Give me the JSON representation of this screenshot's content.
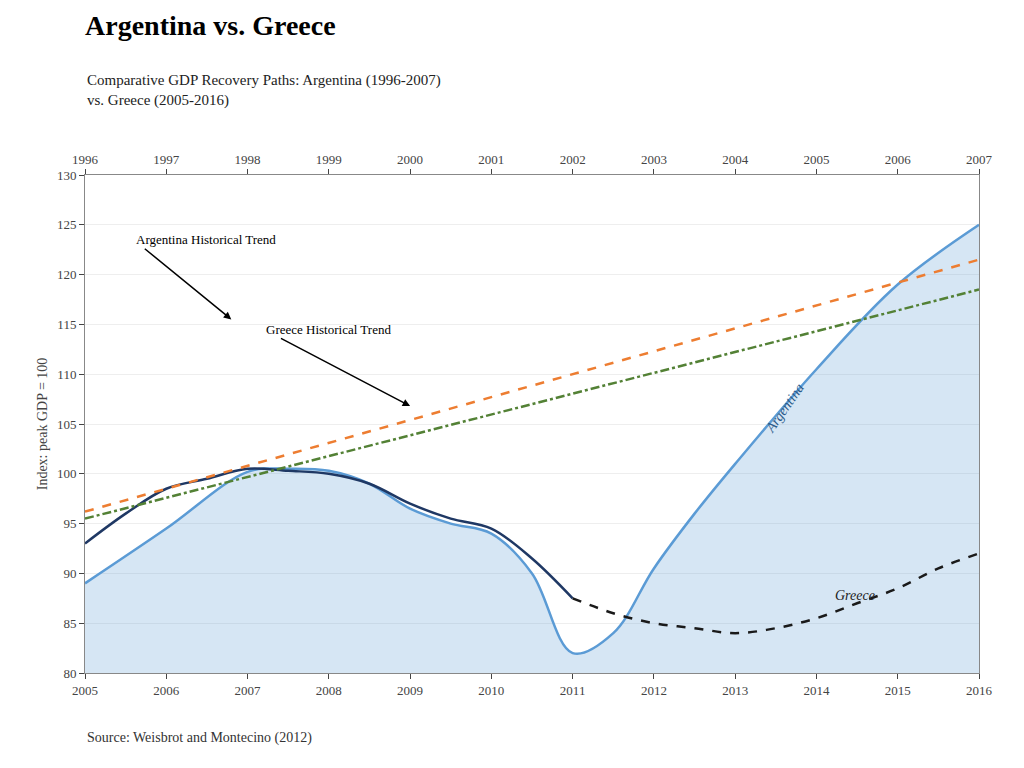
{
  "chart_data": {
    "type": "line",
    "title": "Argentina vs. Greece",
    "subtitle": "Comparative GDP Recovery Paths: Argentina (1996-2007)\nvs. Greece (2005-2016)",
    "source": "Source: Weisbrot and Montecino (2012)",
    "ylabel": "Index: peak GDP = 100",
    "xlim": [
      2005,
      2016
    ],
    "xticks": [
      2005,
      2006,
      2007,
      2008,
      2009,
      2010,
      2011,
      2012,
      2013,
      2014,
      2015,
      2016
    ],
    "x2lim": [
      2005,
      2016
    ],
    "x2ticks": [
      {
        "value": 2005,
        "label": "1996"
      },
      {
        "value": 2006,
        "label": "1997"
      },
      {
        "value": 2007,
        "label": "1998"
      },
      {
        "value": 2008,
        "label": "1999"
      },
      {
        "value": 2009,
        "label": "2000"
      },
      {
        "value": 2010,
        "label": "2001"
      },
      {
        "value": 2011,
        "label": "2002"
      },
      {
        "value": 2012,
        "label": "2003"
      },
      {
        "value": 2013,
        "label": "2004"
      },
      {
        "value": 2014,
        "label": "2005"
      },
      {
        "value": 2015,
        "label": "2006"
      },
      {
        "value": 2016,
        "label": "2007"
      }
    ],
    "ylim": [
      80,
      130
    ],
    "yticks": [
      80,
      85,
      90,
      95,
      100,
      105,
      110,
      115,
      120,
      125,
      130
    ],
    "grid": "y",
    "series": [
      {
        "type": "area",
        "color": "#5b9bd5",
        "line_style": "solid",
        "x": [
          2005,
          2006,
          2007,
          2007.5,
          2008,
          2008.5,
          2009,
          2009.5,
          2010,
          2010.5,
          2011,
          2011.5,
          2012,
          2012.5,
          2013,
          2014,
          2015,
          2016
        ],
        "values": [
          89.0,
          94.5,
          100.2,
          100.5,
          100.3,
          99.0,
          96.5,
          95.0,
          94.0,
          90.0,
          82.0,
          84.0,
          90.5,
          96.0,
          101.0,
          110.5,
          119.0,
          125.0
        ]
      },
      {
        "type": "line",
        "color": "#1f3864",
        "line_style": "solid",
        "x": [
          2005,
          2005.5,
          2006,
          2006.5,
          2007,
          2007.5,
          2008,
          2008.5,
          2009,
          2009.5,
          2010,
          2010.5,
          2011
        ],
        "values": [
          93.0,
          96.0,
          98.5,
          99.5,
          100.5,
          100.3,
          100.0,
          99.0,
          97.0,
          95.5,
          94.5,
          91.5,
          87.5
        ]
      },
      {
        "type": "line",
        "color": "#1a1a1a",
        "line_style": "dashed",
        "x": [
          2011,
          2011.5,
          2012,
          2012.5,
          2013,
          2013.5,
          2014,
          2014.5,
          2015,
          2015.5,
          2016
        ],
        "values": [
          87.5,
          86.0,
          85.0,
          84.5,
          84.0,
          84.5,
          85.5,
          87.0,
          88.5,
          90.5,
          92.0
        ]
      },
      {
        "type": "line",
        "color": "#ed7d31",
        "line_style": "dashed",
        "x": [
          2005,
          2016
        ],
        "values": [
          96.2,
          121.5
        ]
      },
      {
        "type": "line",
        "color": "#538135",
        "line_style": "dashdot",
        "x": [
          2005,
          2016
        ],
        "values": [
          95.5,
          118.5
        ]
      }
    ],
    "annotations": [
      {
        "text": "Argentina",
        "x": 2013.3,
        "y": 103.5,
        "color": "#2a5a8a"
      },
      {
        "text": "Greece",
        "x": 2014.2,
        "y": 86.8,
        "color": "#222222"
      },
      {
        "text": "Argentina Historical Trend",
        "x": 2006.8,
        "y": 115.5,
        "text_x": 2005.6,
        "text_y": 123.5
      },
      {
        "text": "Greece Historical Trend",
        "x": 2009.0,
        "y": 106.8,
        "text_x": 2007.2,
        "text_y": 114.5
      }
    ]
  }
}
